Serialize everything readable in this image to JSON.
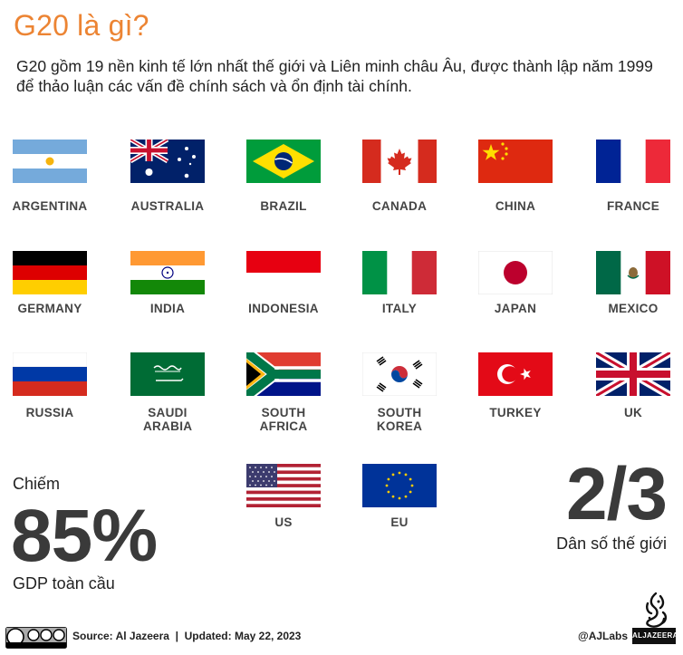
{
  "title": "G20 là gì?",
  "subtitle": "G20 gồm 19 nền kinh tế lớn nhất thế giới và Liên minh châu Âu, được thành lập năm 1999 để thảo luận các vấn đề chính sách và ổn định tài chính.",
  "countries": {
    "argentina": "ARGENTINA",
    "australia": "AUSTRALIA",
    "brazil": "BRAZIL",
    "canada": "CANADA",
    "china": "CHINA",
    "france": "FRANCE",
    "germany": "GERMANY",
    "india": "INDIA",
    "indonesia": "INDONESIA",
    "italy": "ITALY",
    "japan": "JAPAN",
    "mexico": "MEXICO",
    "russia": "RUSSIA",
    "saudi_arabia": "SAUDI ARABIA",
    "south_africa": "SOUTH AFRICA",
    "south_korea": "SOUTH KOREA",
    "turkey": "TURKEY",
    "uk": "UK",
    "us": "US",
    "eu": "EU"
  },
  "stats": {
    "gdp_prefix": "Chiếm",
    "gdp_value": "85%",
    "gdp_label": "GDP toàn cầu",
    "population_value": "2/3",
    "population_label": "Dân số thế giới"
  },
  "footer": {
    "source": "Source: Al Jazeera  |  Updated: May 22, 2023",
    "credit": "@AJLabs",
    "badge": "ALJAZEERA"
  },
  "colors": {
    "accent": "#ec8433",
    "stat_text": "#3a3a3a"
  }
}
